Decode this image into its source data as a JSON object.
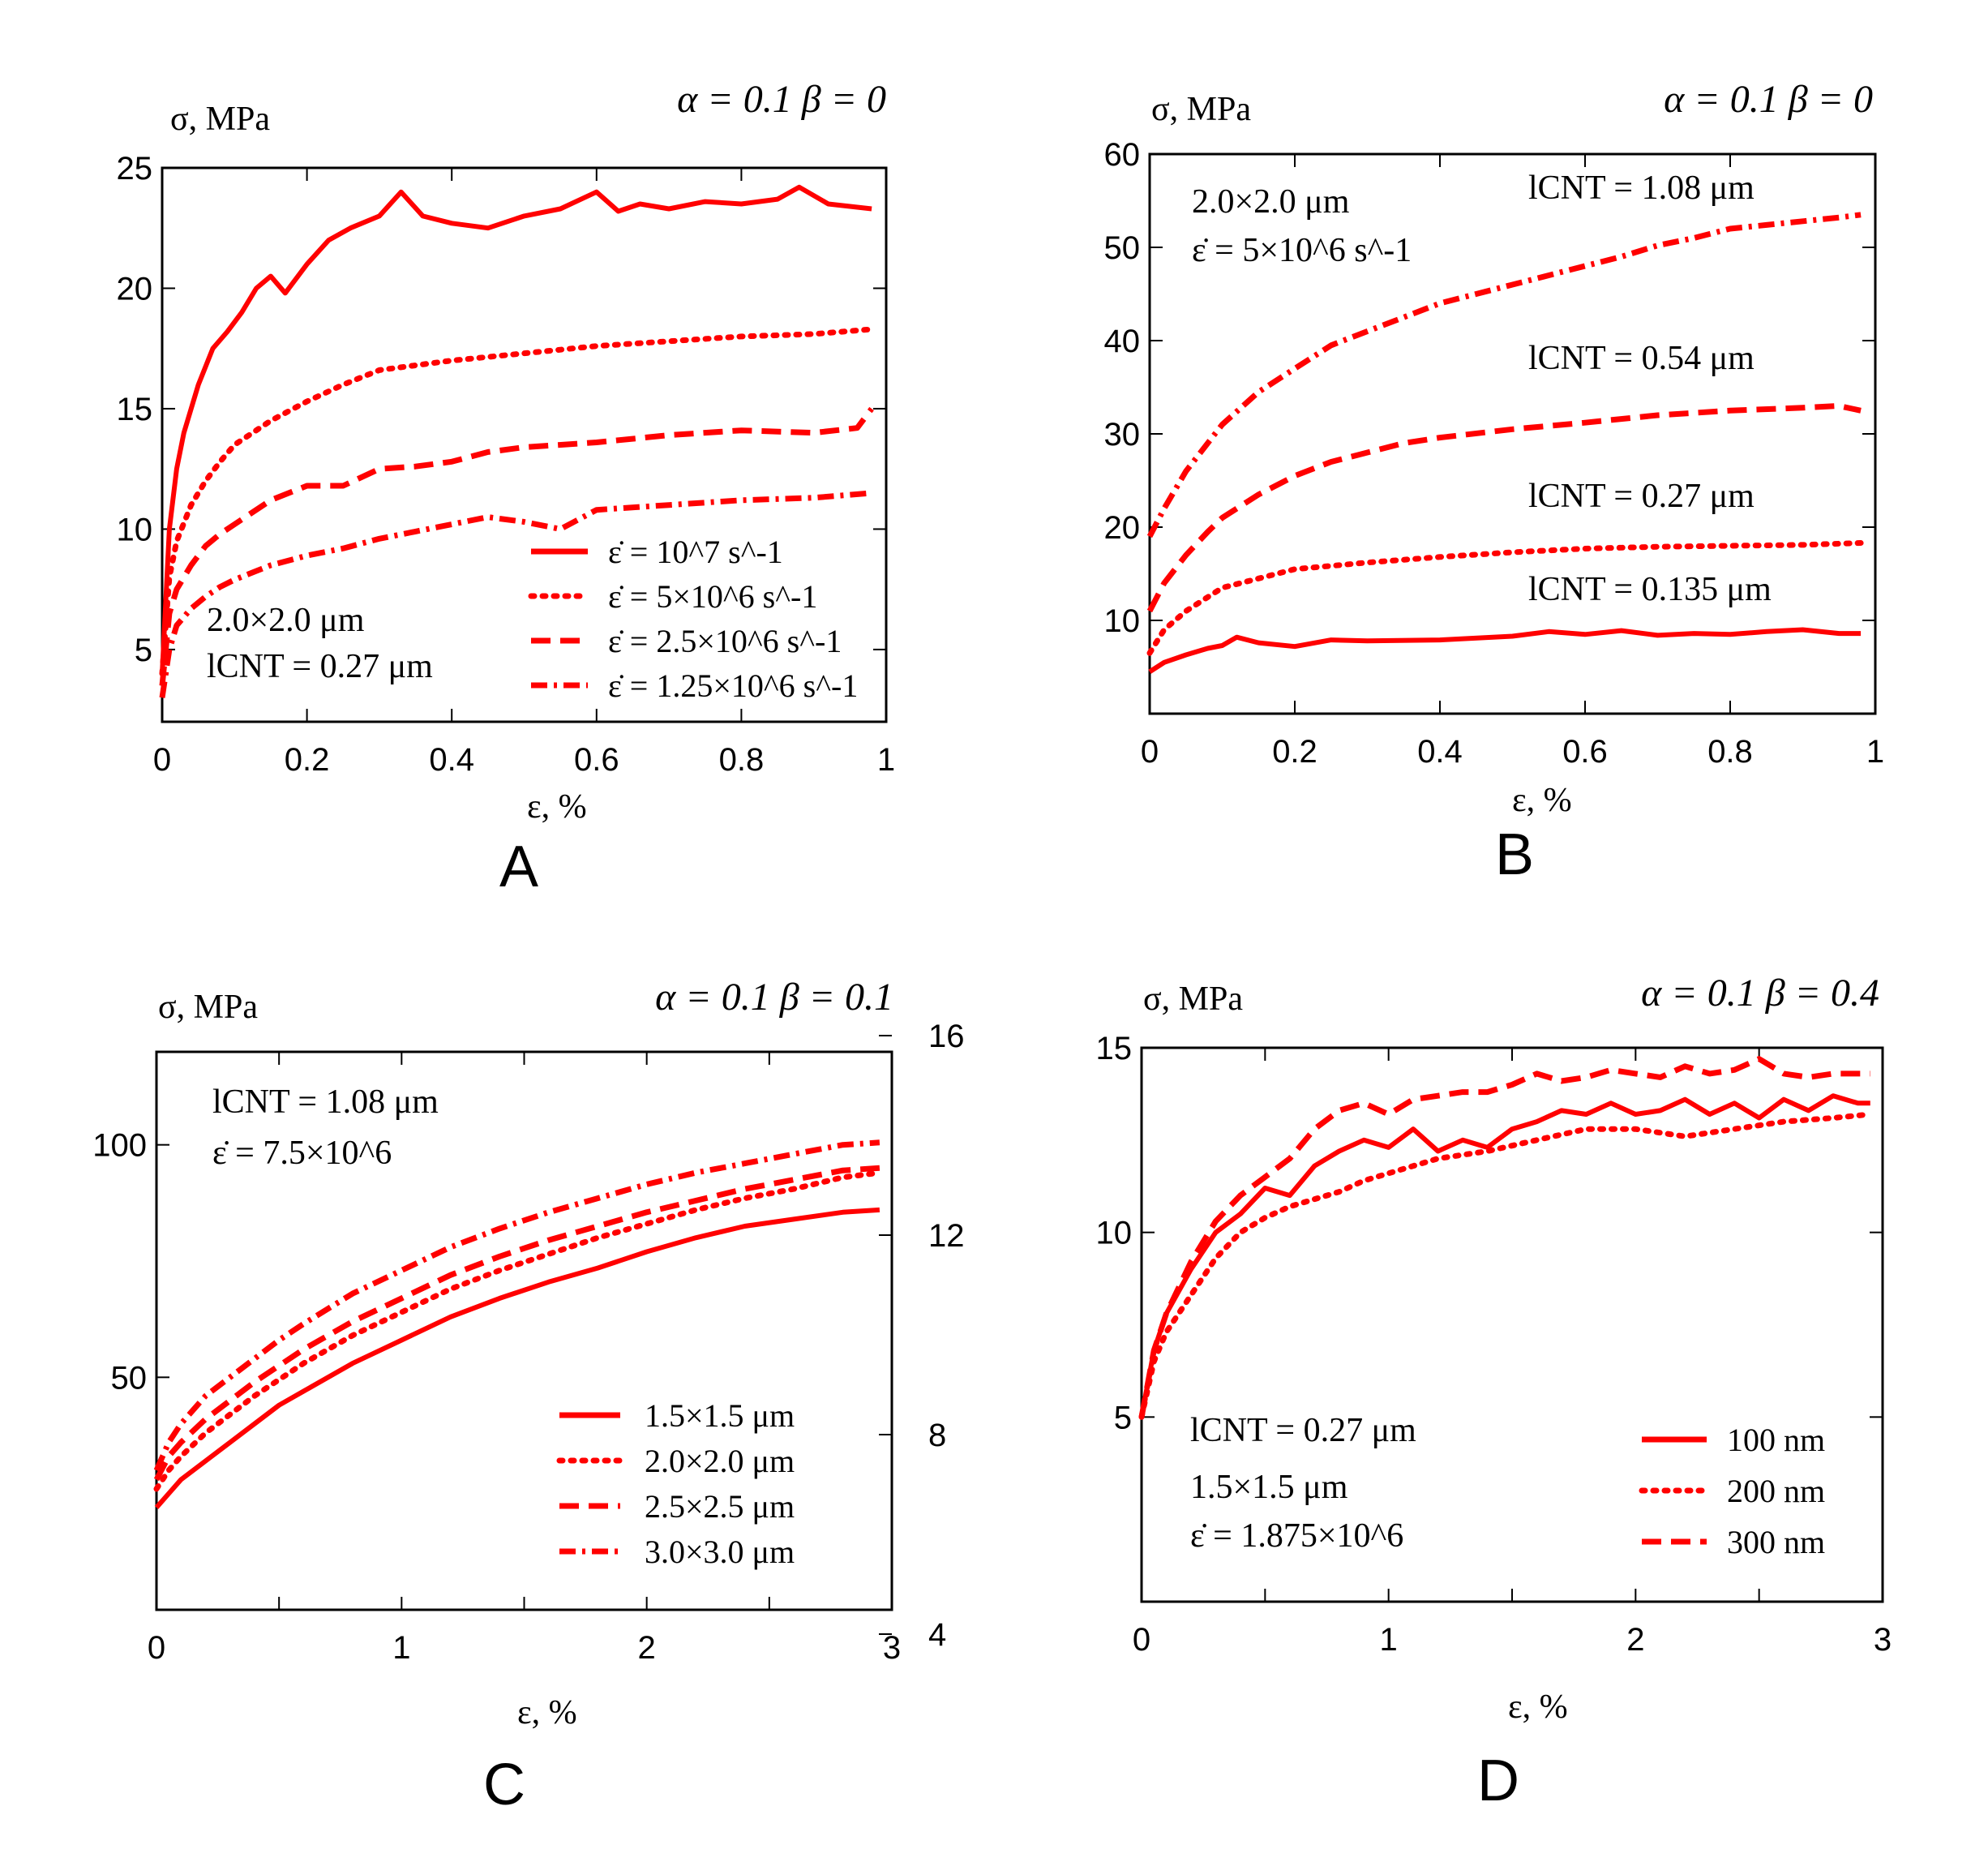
{
  "chart_data": [
    {
      "id": "A",
      "type": "line",
      "panel_label": "A",
      "params": "α = 0.1  β = 0",
      "ylabel": "σ, MPa",
      "xlabel": "ε, %",
      "xlim": [
        0,
        1
      ],
      "ylim": [
        2,
        25
      ],
      "xticks": [
        0,
        0.2,
        0.4,
        0.6,
        0.8,
        1
      ],
      "xtick_labels": [
        "0",
        "0.2",
        "0.4",
        "0.6",
        "0.8",
        "1"
      ],
      "yticks": [
        5,
        10,
        15,
        20,
        25
      ],
      "ytick_labels": [
        "5",
        "10",
        "15",
        "20",
        "25"
      ],
      "annotations": [
        "2.0×2.0 μm",
        "lCNT = 0.27 μm"
      ],
      "legend": "bottom-right",
      "series": [
        {
          "name": "ε̇ = 10^7 s^-1",
          "style": "solid",
          "x": [
            0,
            0.01,
            0.02,
            0.03,
            0.05,
            0.07,
            0.09,
            0.11,
            0.13,
            0.15,
            0.17,
            0.2,
            0.23,
            0.26,
            0.3,
            0.33,
            0.36,
            0.4,
            0.45,
            0.5,
            0.55,
            0.6,
            0.63,
            0.66,
            0.7,
            0.75,
            0.8,
            0.85,
            0.88,
            0.92,
            0.98
          ],
          "values": [
            4,
            10,
            12.5,
            14,
            16,
            17.5,
            18.2,
            19,
            20,
            20.5,
            19.8,
            21,
            22,
            22.5,
            23,
            24,
            23,
            22.7,
            22.5,
            23,
            23.3,
            24,
            23.2,
            23.5,
            23.3,
            23.6,
            23.5,
            23.7,
            24.2,
            23.5,
            23.3
          ]
        },
        {
          "name": "ε̇ = 5×10^6 s^-1",
          "style": "dotted",
          "x": [
            0,
            0.01,
            0.02,
            0.04,
            0.06,
            0.08,
            0.1,
            0.15,
            0.2,
            0.25,
            0.3,
            0.35,
            0.4,
            0.5,
            0.6,
            0.7,
            0.8,
            0.9,
            0.98
          ],
          "values": [
            4,
            8,
            9.5,
            11,
            12,
            12.8,
            13.5,
            14.5,
            15.3,
            16,
            16.6,
            16.8,
            17,
            17.3,
            17.6,
            17.8,
            18,
            18.1,
            18.3
          ]
        },
        {
          "name": "ε̇ = 2.5×10^6 s^-1",
          "style": "dashed",
          "x": [
            0,
            0.01,
            0.02,
            0.04,
            0.06,
            0.08,
            0.1,
            0.15,
            0.2,
            0.25,
            0.3,
            0.35,
            0.4,
            0.45,
            0.5,
            0.6,
            0.7,
            0.8,
            0.9,
            0.96,
            0.98
          ],
          "values": [
            3.5,
            6.5,
            7.5,
            8.5,
            9.3,
            9.8,
            10.2,
            11.2,
            11.8,
            11.8,
            12.5,
            12.6,
            12.8,
            13.2,
            13.4,
            13.6,
            13.9,
            14.1,
            14,
            14.2,
            15
          ]
        },
        {
          "name": "ε̇ = 1.25×10^6 s^-1",
          "style": "dash-dot",
          "x": [
            0,
            0.01,
            0.02,
            0.04,
            0.06,
            0.08,
            0.1,
            0.15,
            0.2,
            0.25,
            0.3,
            0.35,
            0.4,
            0.45,
            0.5,
            0.55,
            0.6,
            0.7,
            0.8,
            0.9,
            0.98
          ],
          "values": [
            3,
            5,
            6,
            6.7,
            7.2,
            7.6,
            7.9,
            8.5,
            8.9,
            9.2,
            9.6,
            9.9,
            10.2,
            10.5,
            10.3,
            10,
            10.8,
            11,
            11.2,
            11.3,
            11.5
          ]
        }
      ]
    },
    {
      "id": "B",
      "type": "line",
      "panel_label": "B",
      "params": "α = 0.1  β = 0",
      "ylabel": "σ, MPa",
      "xlabel": "ε, %",
      "xlim": [
        0,
        1
      ],
      "ylim": [
        0,
        60
      ],
      "xticks": [
        0,
        0.2,
        0.4,
        0.6,
        0.8,
        1
      ],
      "xtick_labels": [
        "0",
        "0.2",
        "0.4",
        "0.6",
        "0.8",
        "1"
      ],
      "yticks": [
        10,
        20,
        30,
        40,
        50,
        60
      ],
      "ytick_labels": [
        "10",
        "20",
        "30",
        "40",
        "50",
        "60"
      ],
      "annotations": [
        "2.0×2.0 μm",
        "ε̇ = 5×10^6 s^-1"
      ],
      "series": [
        {
          "name": "lCNT = 1.08 μm",
          "style": "dash-dot",
          "x": [
            0,
            0.02,
            0.05,
            0.08,
            0.1,
            0.15,
            0.2,
            0.25,
            0.3,
            0.35,
            0.4,
            0.45,
            0.5,
            0.55,
            0.6,
            0.65,
            0.7,
            0.75,
            0.8,
            0.85,
            0.9,
            0.95,
            0.98
          ],
          "values": [
            19,
            22,
            26,
            29,
            31,
            34.5,
            37,
            39.5,
            41,
            42.5,
            44,
            45,
            46,
            47,
            48,
            49,
            50.2,
            51,
            52,
            52.4,
            52.8,
            53.2,
            53.5
          ]
        },
        {
          "name": "lCNT = 0.54 μm",
          "style": "dashed",
          "x": [
            0,
            0.02,
            0.05,
            0.08,
            0.1,
            0.15,
            0.2,
            0.25,
            0.3,
            0.35,
            0.4,
            0.5,
            0.6,
            0.7,
            0.8,
            0.9,
            0.95,
            0.98
          ],
          "values": [
            11,
            14,
            17,
            19.5,
            21,
            23.5,
            25.5,
            27,
            28,
            29,
            29.6,
            30.5,
            31.2,
            32,
            32.5,
            32.8,
            33,
            32.5
          ]
        },
        {
          "name": "lCNT = 0.27 μm",
          "style": "dotted",
          "x": [
            0,
            0.02,
            0.05,
            0.08,
            0.1,
            0.15,
            0.2,
            0.3,
            0.4,
            0.5,
            0.6,
            0.7,
            0.8,
            0.9,
            0.98
          ],
          "values": [
            6.5,
            9,
            11,
            12.5,
            13.5,
            14.5,
            15.5,
            16.2,
            16.8,
            17.3,
            17.7,
            17.9,
            18,
            18.1,
            18.3
          ]
        },
        {
          "name": "lCNT = 0.135 μm",
          "style": "solid",
          "x": [
            0,
            0.02,
            0.05,
            0.08,
            0.1,
            0.12,
            0.15,
            0.2,
            0.25,
            0.3,
            0.4,
            0.5,
            0.55,
            0.6,
            0.65,
            0.7,
            0.75,
            0.8,
            0.85,
            0.9,
            0.95,
            0.98
          ],
          "values": [
            4.5,
            5.5,
            6.3,
            7,
            7.3,
            8.2,
            7.6,
            7.2,
            7.9,
            7.8,
            7.9,
            8.3,
            8.8,
            8.5,
            8.9,
            8.4,
            8.6,
            8.5,
            8.8,
            9,
            8.6,
            8.6
          ]
        }
      ]
    },
    {
      "id": "C",
      "type": "line",
      "panel_label": "C",
      "params": "α = 0.1  β = 0.1",
      "ylabel": "σ, MPa",
      "xlabel": "ε, %",
      "xlim": [
        0,
        3
      ],
      "ylim": [
        0,
        120
      ],
      "xticks": [
        0,
        1,
        2,
        3
      ],
      "xtick_labels": [
        "0",
        "1",
        "2",
        "3"
      ],
      "yticks": [
        50,
        100
      ],
      "ytick_labels": [
        "50",
        "100"
      ],
      "right_axis_ticks": [
        4,
        8,
        12,
        16
      ],
      "right_axis_tick_labels": [
        "4",
        "8",
        "12",
        "16"
      ],
      "right_axis_lim": [
        4,
        16
      ],
      "annotations": [
        "lCNT = 1.08 μm",
        "ε̇ = 7.5×10^6"
      ],
      "legend": "bottom-right",
      "series": [
        {
          "name": "1.5×1.5 μm",
          "style": "solid",
          "x": [
            0,
            0.05,
            0.1,
            0.2,
            0.3,
            0.4,
            0.5,
            0.6,
            0.8,
            1,
            1.2,
            1.4,
            1.6,
            1.8,
            2,
            2.2,
            2.4,
            2.6,
            2.8,
            2.95
          ],
          "values": [
            22,
            25,
            28,
            32,
            36,
            40,
            44,
            47,
            53,
            58,
            63,
            67,
            70.5,
            73.5,
            77,
            80,
            82.5,
            84,
            85.5,
            86
          ]
        },
        {
          "name": "2.0×2.0 μm",
          "style": "dotted",
          "x": [
            0,
            0.05,
            0.1,
            0.2,
            0.3,
            0.4,
            0.5,
            0.6,
            0.8,
            1,
            1.2,
            1.4,
            1.6,
            1.8,
            2,
            2.2,
            2.4,
            2.6,
            2.8,
            2.95
          ],
          "values": [
            26,
            30,
            33,
            38,
            42,
            46,
            49.5,
            53,
            59,
            64,
            69,
            73,
            76.5,
            80,
            83,
            86,
            88.5,
            90.5,
            93,
            94
          ]
        },
        {
          "name": "2.5×2.5 μm",
          "style": "dashed",
          "x": [
            0,
            0.05,
            0.1,
            0.2,
            0.3,
            0.4,
            0.5,
            0.6,
            0.8,
            1,
            1.2,
            1.4,
            1.6,
            1.8,
            2,
            2.2,
            2.4,
            2.6,
            2.8,
            2.95
          ],
          "values": [
            28,
            33,
            36,
            41,
            45,
            49,
            52.5,
            56,
            62,
            67,
            72,
            76,
            79.5,
            82.5,
            85.5,
            88,
            90.5,
            92.5,
            94.5,
            95
          ]
        },
        {
          "name": "3.0×3.0 μm",
          "style": "dash-dot",
          "x": [
            0,
            0.05,
            0.1,
            0.2,
            0.3,
            0.4,
            0.5,
            0.6,
            0.8,
            1,
            1.2,
            1.4,
            1.6,
            1.8,
            2,
            2.2,
            2.4,
            2.6,
            2.8,
            2.95
          ],
          "values": [
            30,
            36,
            40,
            46,
            50,
            54,
            58,
            61.5,
            68,
            73,
            78,
            82,
            85.5,
            88.5,
            91.5,
            94,
            96,
            98,
            100,
            100.5
          ]
        }
      ]
    },
    {
      "id": "D",
      "type": "line",
      "panel_label": "D",
      "params": "α = 0.1  β = 0.4",
      "ylabel": "σ, MPa",
      "xlabel": "ε, %",
      "xlim": [
        0,
        3
      ],
      "ylim": [
        0,
        15
      ],
      "xticks": [
        0,
        1,
        2,
        3
      ],
      "xtick_labels": [
        "0",
        "1",
        "2",
        "3"
      ],
      "yticks": [
        5,
        10,
        15
      ],
      "ytick_labels": [
        "5",
        "10",
        "15"
      ],
      "annotations": [
        "lCNT = 0.27 μm",
        "1.5×1.5 μm",
        "ε̇ = 1.875×10^6"
      ],
      "legend": "bottom-right",
      "series": [
        {
          "name": "100 nm",
          "style": "solid",
          "x": [
            0,
            0.05,
            0.1,
            0.2,
            0.3,
            0.4,
            0.5,
            0.6,
            0.7,
            0.8,
            0.9,
            1,
            1.1,
            1.2,
            1.3,
            1.4,
            1.5,
            1.6,
            1.7,
            1.8,
            1.9,
            2,
            2.1,
            2.2,
            2.3,
            2.4,
            2.5,
            2.6,
            2.7,
            2.8,
            2.9,
            2.95
          ],
          "values": [
            5,
            6.8,
            7.8,
            9,
            10,
            10.5,
            11.2,
            11,
            11.8,
            12.2,
            12.5,
            12.3,
            12.8,
            12.2,
            12.5,
            12.3,
            12.8,
            13,
            13.3,
            13.2,
            13.5,
            13.2,
            13.3,
            13.6,
            13.2,
            13.5,
            13.1,
            13.6,
            13.3,
            13.7,
            13.5,
            13.5
          ]
        },
        {
          "name": "200 nm",
          "style": "dotted",
          "x": [
            0,
            0.05,
            0.1,
            0.2,
            0.3,
            0.4,
            0.5,
            0.6,
            0.7,
            0.8,
            0.9,
            1,
            1.1,
            1.2,
            1.4,
            1.6,
            1.8,
            2,
            2.2,
            2.4,
            2.6,
            2.8,
            2.95
          ],
          "values": [
            5,
            6.5,
            7.3,
            8.3,
            9.3,
            10,
            10.4,
            10.7,
            10.9,
            11.1,
            11.4,
            11.6,
            11.8,
            12,
            12.2,
            12.5,
            12.8,
            12.8,
            12.6,
            12.8,
            13,
            13.1,
            13.2
          ]
        },
        {
          "name": "300 nm",
          "style": "dashed",
          "x": [
            0,
            0.05,
            0.1,
            0.2,
            0.3,
            0.4,
            0.5,
            0.6,
            0.7,
            0.8,
            0.9,
            1,
            1.1,
            1.2,
            1.3,
            1.4,
            1.5,
            1.6,
            1.7,
            1.8,
            1.9,
            2,
            2.1,
            2.2,
            2.3,
            2.4,
            2.5,
            2.6,
            2.7,
            2.8,
            2.9,
            2.95
          ],
          "values": [
            5,
            6.8,
            7.8,
            9.2,
            10.3,
            11,
            11.5,
            12,
            12.8,
            13.3,
            13.5,
            13.2,
            13.6,
            13.7,
            13.8,
            13.8,
            14,
            14.3,
            14.1,
            14.2,
            14.4,
            14.3,
            14.2,
            14.5,
            14.3,
            14.4,
            14.7,
            14.3,
            14.2,
            14.3,
            14.3,
            14.3
          ]
        }
      ]
    }
  ]
}
